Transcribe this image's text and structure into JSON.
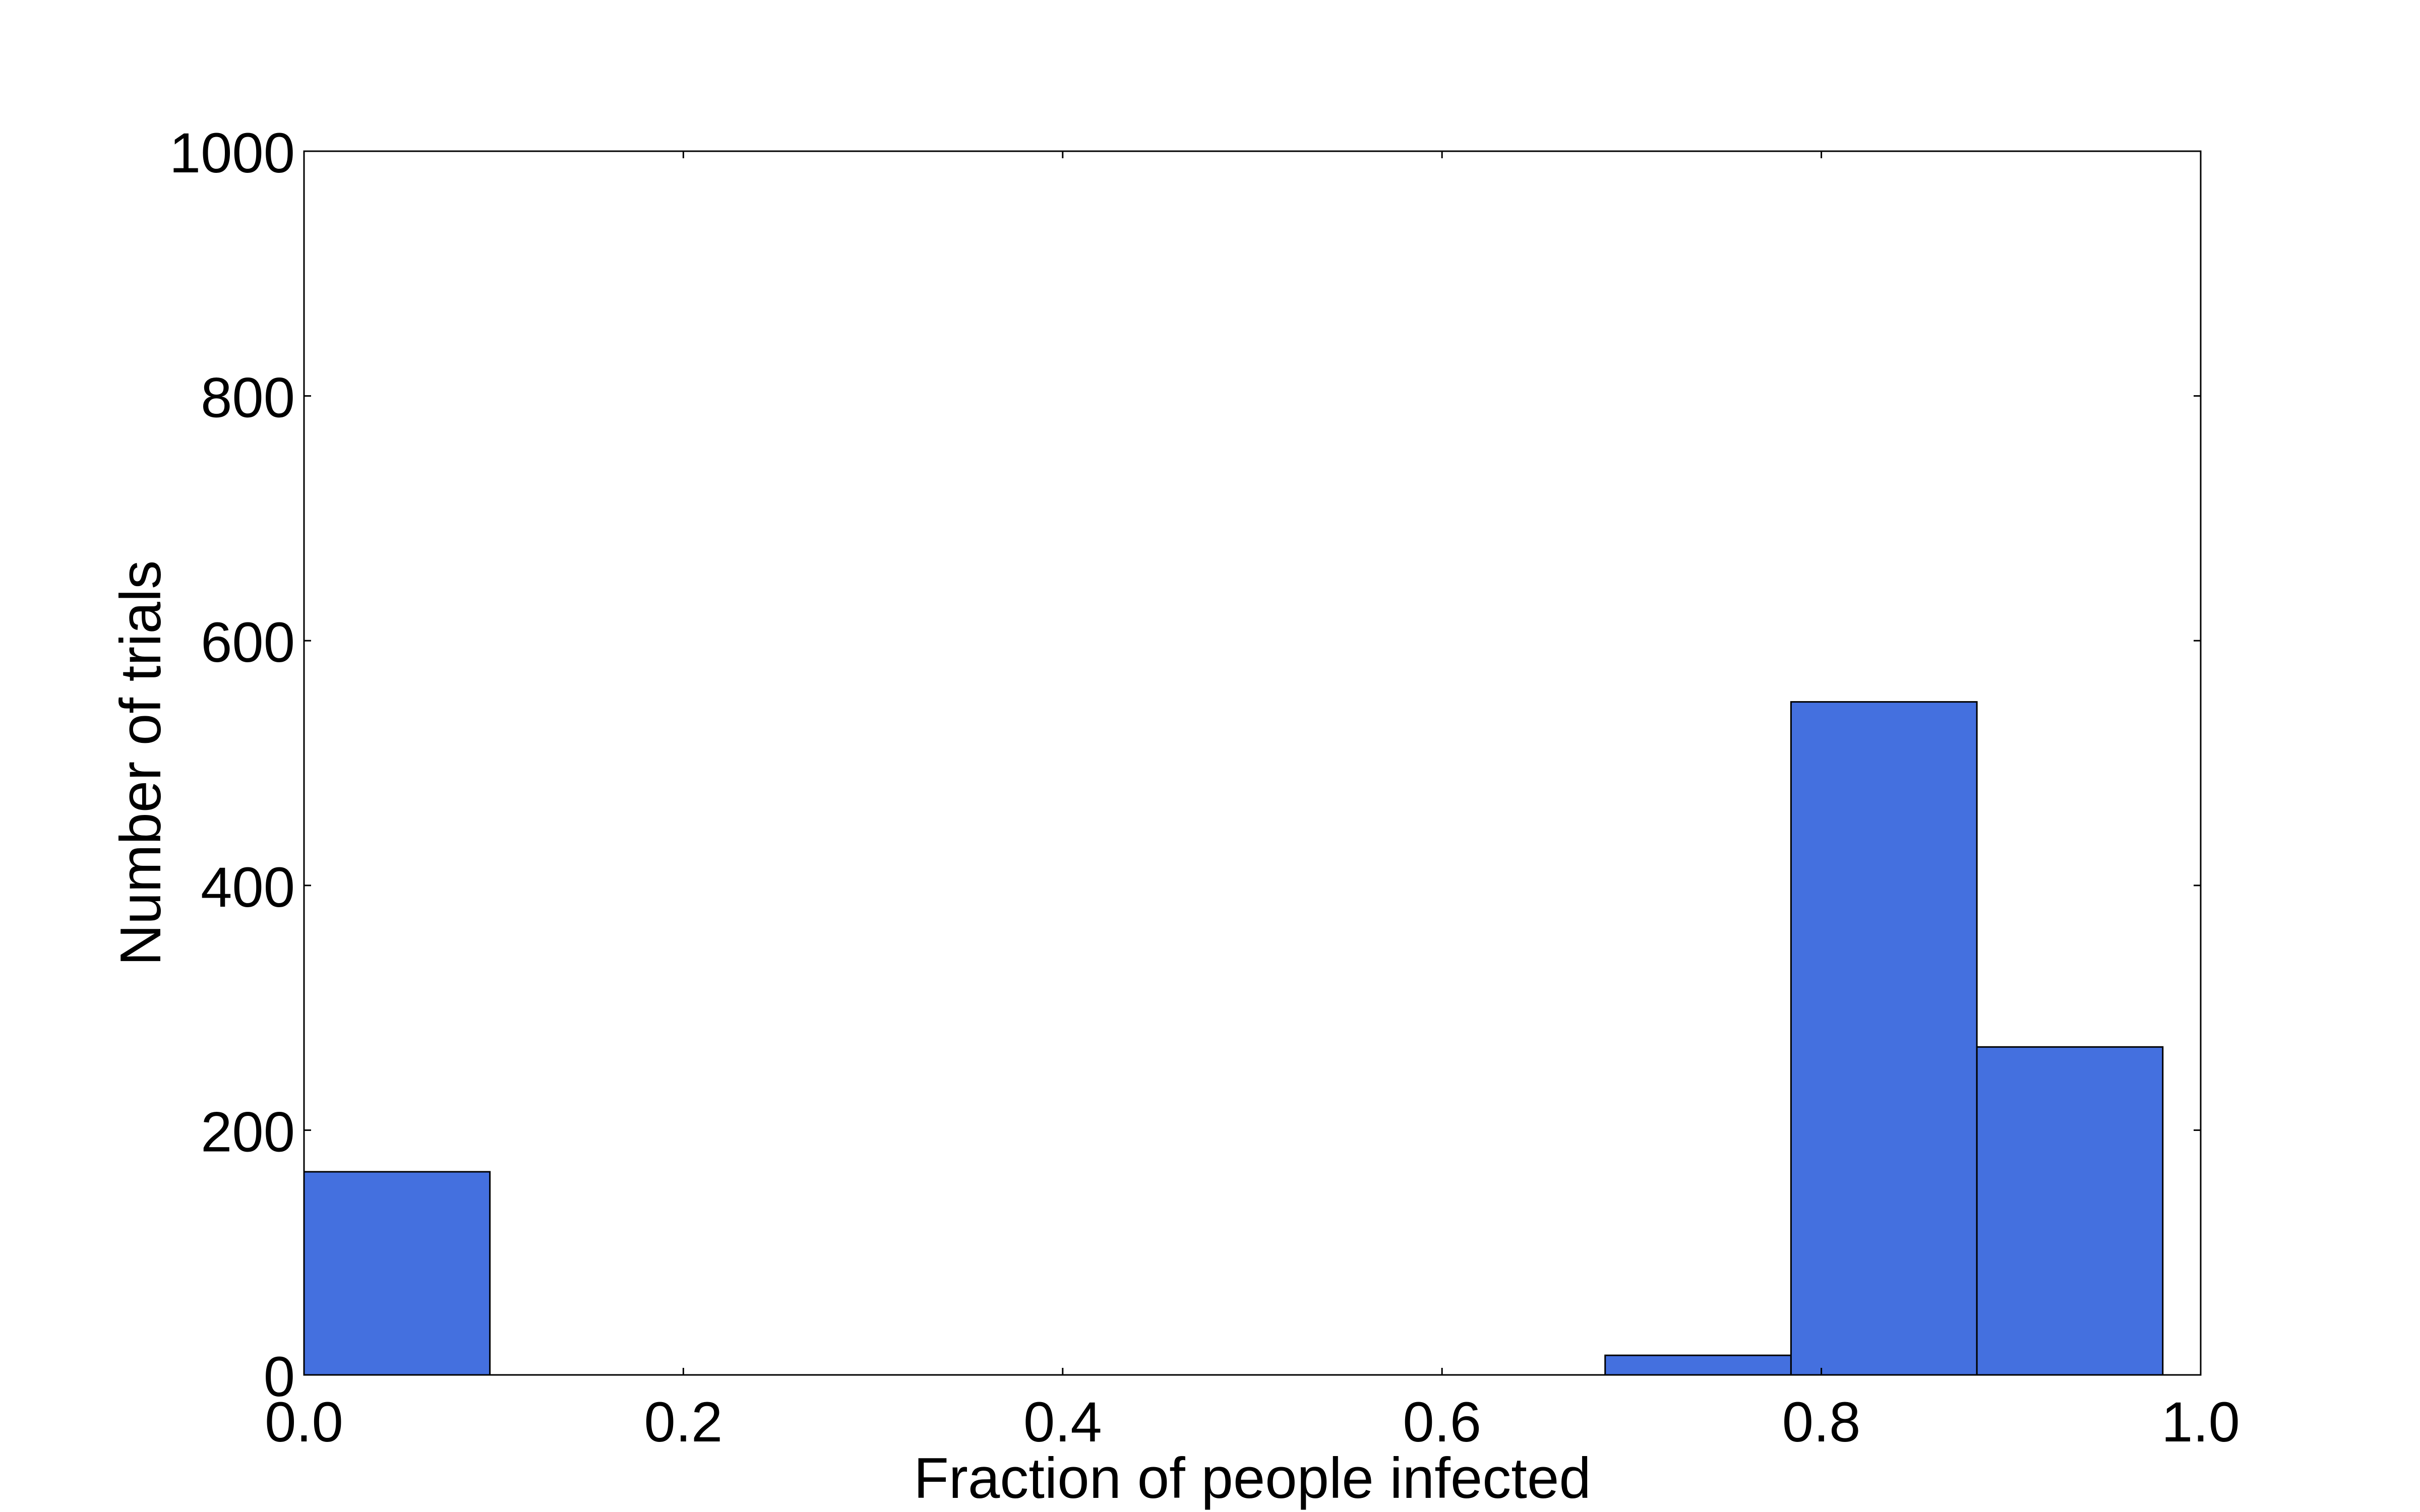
{
  "chart_data": {
    "type": "bar",
    "title": "",
    "xlabel": "Fraction of people infected",
    "ylabel": "Number of trials",
    "xlim": [
      0.0,
      1.0
    ],
    "ylim": [
      0,
      1000
    ],
    "x_ticks": [
      "0.0",
      "0.2",
      "0.4",
      "0.6",
      "0.8",
      "1.0"
    ],
    "y_ticks": [
      "0",
      "200",
      "400",
      "600",
      "800",
      "1000"
    ],
    "bins": [
      {
        "x0": 0.0,
        "x1": 0.098,
        "count": 166
      },
      {
        "x0": 0.098,
        "x1": 0.196,
        "count": 0
      },
      {
        "x0": 0.196,
        "x1": 0.294,
        "count": 0
      },
      {
        "x0": 0.294,
        "x1": 0.392,
        "count": 0
      },
      {
        "x0": 0.392,
        "x1": 0.49,
        "count": 0
      },
      {
        "x0": 0.49,
        "x1": 0.588,
        "count": 0
      },
      {
        "x0": 0.588,
        "x1": 0.686,
        "count": 0
      },
      {
        "x0": 0.686,
        "x1": 0.784,
        "count": 16
      },
      {
        "x0": 0.784,
        "x1": 0.882,
        "count": 550
      },
      {
        "x0": 0.882,
        "x1": 0.98,
        "count": 268
      }
    ],
    "bar_color": "#4470df",
    "edge_color": "#000000",
    "grid": false,
    "legend": "none"
  }
}
